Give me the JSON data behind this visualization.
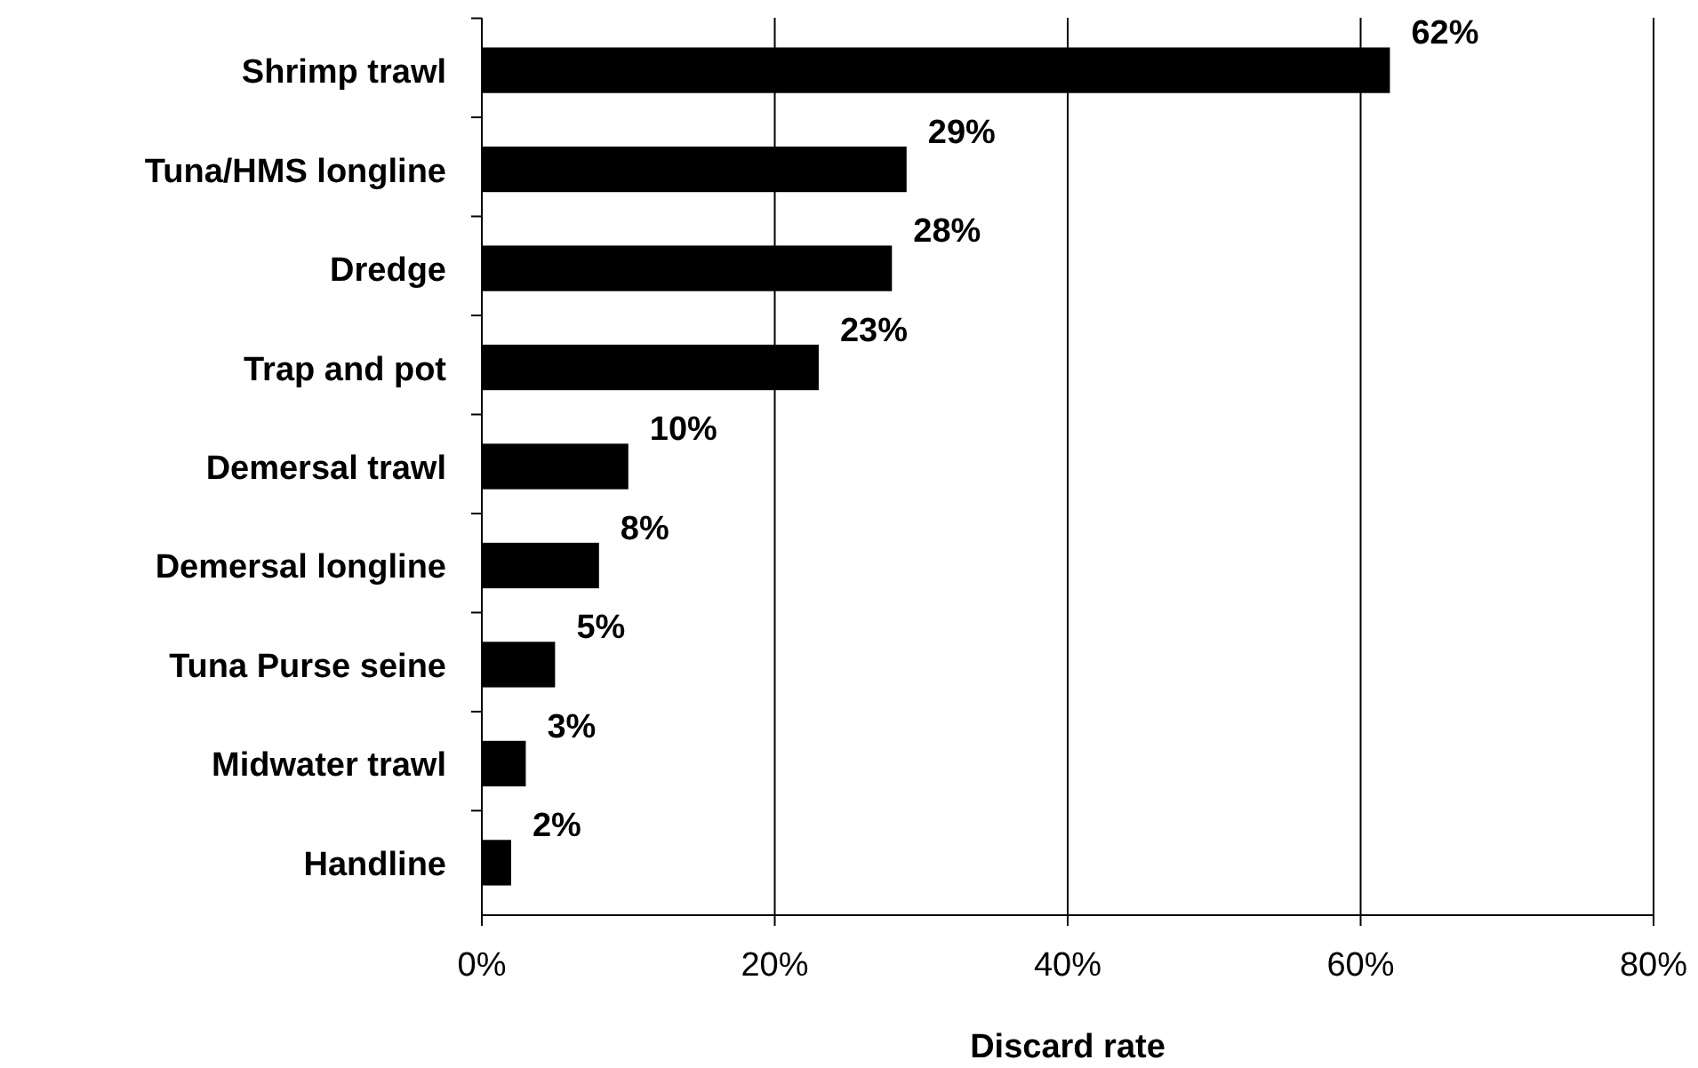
{
  "chart_data": {
    "type": "bar",
    "orientation": "horizontal",
    "xlabel": "Discard rate",
    "categories": [
      "Shrimp trawl",
      "Tuna/HMS longline",
      "Dredge",
      "Trap and pot",
      "Demersal trawl",
      "Demersal longline",
      "Tuna Purse seine",
      "Midwater trawl",
      "Handline"
    ],
    "values": [
      62,
      29,
      28,
      23,
      10,
      8,
      5,
      3,
      2
    ],
    "value_labels": [
      "62%",
      "29%",
      "28%",
      "23%",
      "10%",
      "8%",
      "5%",
      "3%",
      "2%"
    ],
    "color": "#000000",
    "xlim": [
      0,
      80
    ],
    "xticks": [
      {
        "value": 0,
        "label": "0%"
      },
      {
        "value": 20,
        "label": "20%"
      },
      {
        "value": 40,
        "label": "40%"
      },
      {
        "value": 60,
        "label": "60%"
      },
      {
        "value": 80,
        "label": "80%"
      }
    ],
    "grid": "x"
  }
}
